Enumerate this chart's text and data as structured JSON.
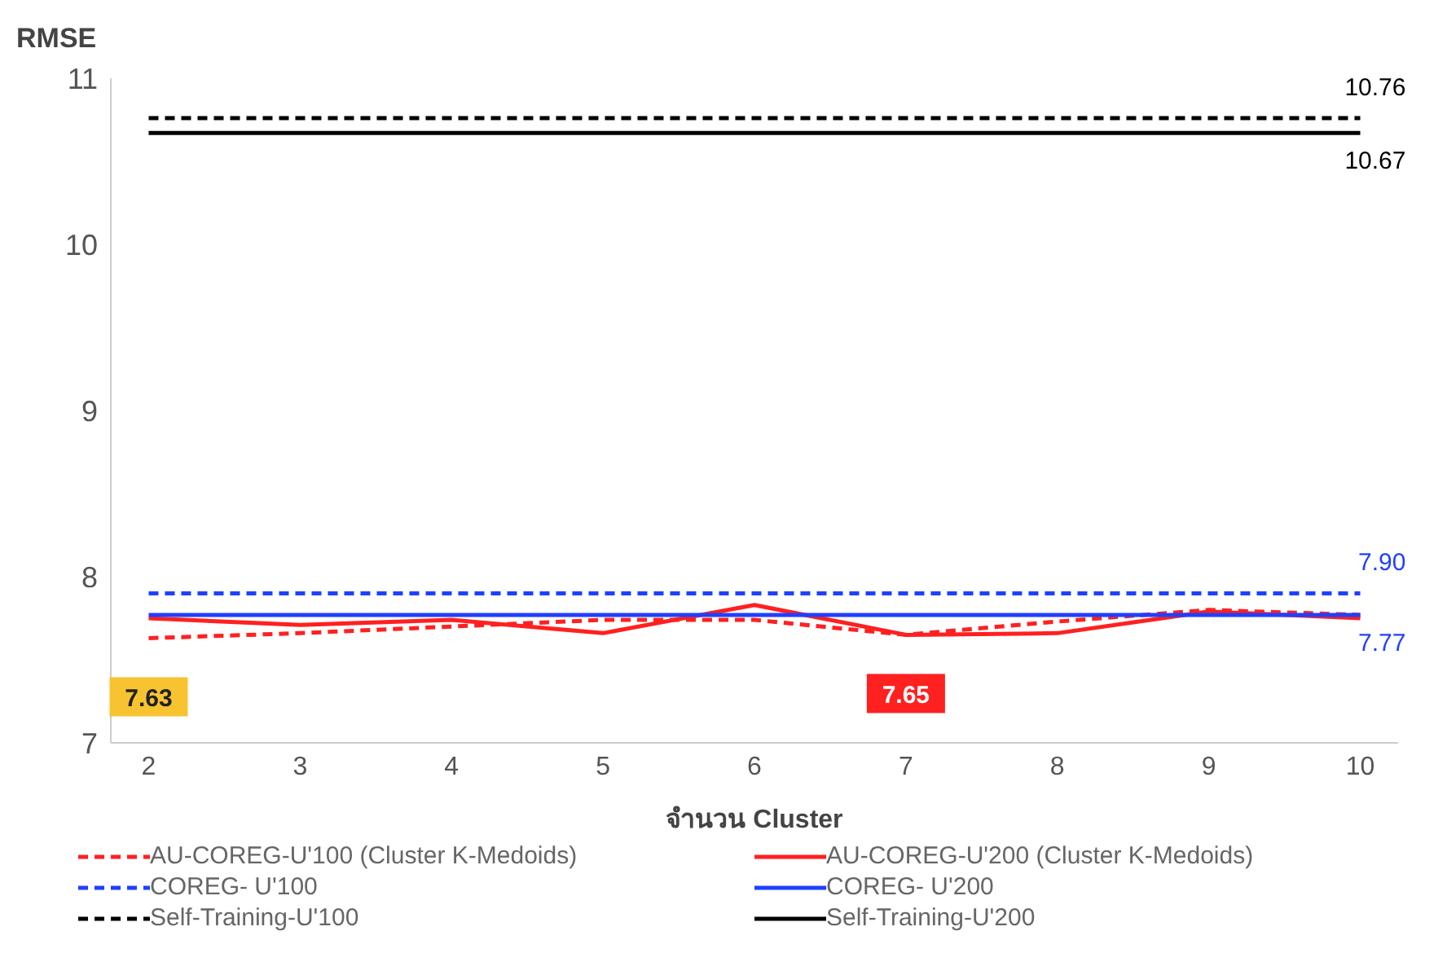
{
  "chart_data": {
    "type": "line",
    "ylabel": "RMSE",
    "xlabel": "จำนวน Cluster",
    "x": [
      2,
      3,
      4,
      5,
      6,
      7,
      8,
      9,
      10
    ],
    "xlim": [
      1.75,
      10.25
    ],
    "xticks": [
      2,
      3,
      4,
      5,
      6,
      7,
      8,
      9,
      10
    ],
    "ylim": [
      7,
      11
    ],
    "yticks": [
      7,
      8,
      9,
      10,
      11
    ],
    "grid": false,
    "legend": "bottom",
    "marker": "none",
    "series": [
      {
        "name": "AU-COREG-U'100 (Cluster K-Medoids)",
        "color": "#ff2020",
        "line_style": "dashed",
        "values": [
          7.63,
          7.66,
          7.7,
          7.74,
          7.74,
          7.65,
          7.73,
          7.8,
          7.77
        ],
        "value_labels": [
          "7.63",
          null,
          null,
          null,
          null,
          null,
          null,
          null,
          null
        ]
      },
      {
        "name": "AU-COREG-U'200 (Cluster K-Medoids)",
        "color": "#ff2020",
        "line_style": "solid",
        "values": [
          7.75,
          7.71,
          7.74,
          7.66,
          7.83,
          7.65,
          7.66,
          7.79,
          7.75
        ],
        "value_labels": [
          null,
          null,
          null,
          null,
          null,
          "7.65",
          null,
          null,
          null
        ]
      },
      {
        "name": "COREG- U'100",
        "color": "#2040ff",
        "line_style": "dashed",
        "values": [
          7.9,
          7.9,
          7.9,
          7.9,
          7.9,
          7.9,
          7.9,
          7.9,
          7.9
        ],
        "value_labels": [
          null,
          null,
          null,
          null,
          null,
          null,
          null,
          null,
          "7.90"
        ]
      },
      {
        "name": "COREG- U'200",
        "color": "#2040ff",
        "line_style": "solid",
        "values": [
          7.77,
          7.77,
          7.77,
          7.77,
          7.77,
          7.77,
          7.77,
          7.77,
          7.77
        ],
        "value_labels": [
          null,
          null,
          null,
          null,
          null,
          null,
          null,
          null,
          "7.77"
        ]
      },
      {
        "name": "Self-Training-U'100",
        "color": "#000000",
        "line_style": "dashed",
        "values": [
          10.76,
          10.76,
          10.76,
          10.76,
          10.76,
          10.76,
          10.76,
          10.76,
          10.76
        ],
        "value_labels": [
          null,
          null,
          null,
          null,
          null,
          null,
          null,
          null,
          "10.76"
        ]
      },
      {
        "name": "Self-Training-U'200",
        "color": "#000000",
        "line_style": "solid",
        "values": [
          10.67,
          10.67,
          10.67,
          10.67,
          10.67,
          10.67,
          10.67,
          10.67,
          10.67
        ],
        "value_labels": [
          null,
          null,
          null,
          null,
          null,
          null,
          null,
          null,
          "10.67"
        ]
      }
    ]
  }
}
